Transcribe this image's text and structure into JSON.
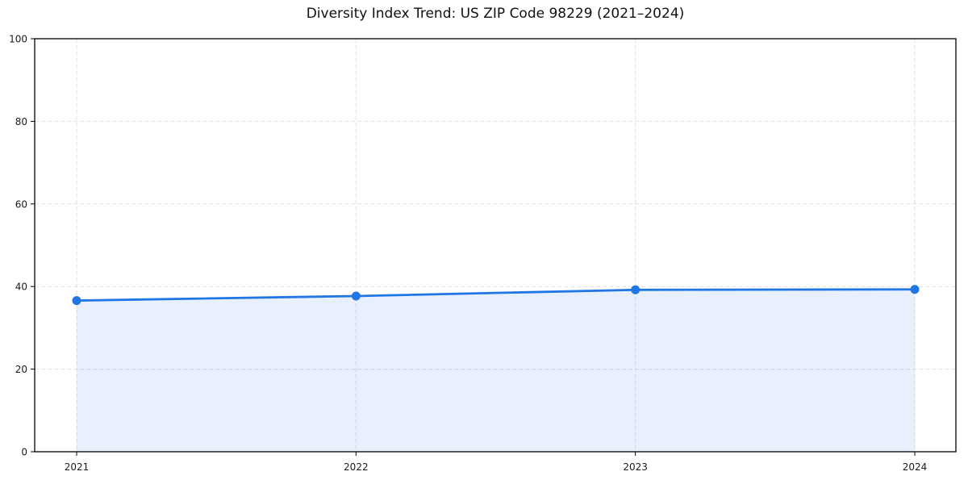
{
  "chart_data": {
    "type": "area",
    "title": "Diversity Index Trend: US ZIP Code 98229 (2021–2024)",
    "categories": [
      "2021",
      "2022",
      "2023",
      "2024"
    ],
    "series": [
      {
        "name": "Diversity Index",
        "values": [
          36.6,
          37.7,
          39.2,
          39.3
        ]
      }
    ],
    "xlabel": "",
    "ylabel": "",
    "ylim": [
      0,
      100
    ],
    "yticks": [
      0,
      20,
      40,
      60,
      80,
      100
    ],
    "grid": true,
    "grid_style": "dashed",
    "legend": "none",
    "colors": {
      "line": "#2176e6",
      "marker": "#2176e6",
      "fill": "rgba(33, 118, 230, 0.11)",
      "grid": "#e2e2e2",
      "spine": "#000000",
      "text": "#1a1a1a"
    }
  }
}
